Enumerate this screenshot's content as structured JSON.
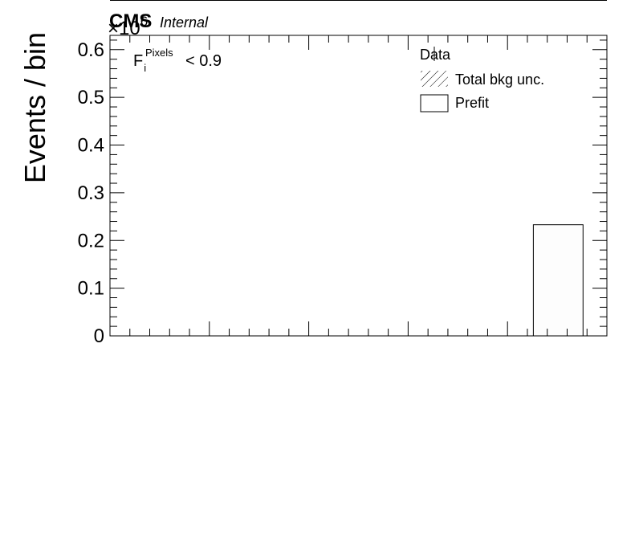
{
  "header": {
    "experiment": "CMS",
    "status": "Internal",
    "multiplier_base": "×10",
    "multiplier_exponent": "6"
  },
  "selection": {
    "symbol": "F",
    "subscript": "i",
    "superscript": "Pixels",
    "cut": "< 0.9"
  },
  "legend": {
    "placement": "top-right",
    "entries": [
      {
        "label": "Data",
        "style": "marker"
      },
      {
        "label": "Total bkg unc.",
        "style": "hatched"
      },
      {
        "label": "Prefit",
        "style": "box"
      }
    ]
  },
  "chart_data": {
    "type": "bar",
    "title": "",
    "xlabel": "",
    "ylabel": "Events / bin",
    "ylim": [
      0,
      0.63
    ],
    "y_scale_factor": "10^6",
    "y_ticks": [
      "0",
      "0.1",
      "0.2",
      "0.3",
      "0.4",
      "0.5",
      "0.6"
    ],
    "xlim": [
      0,
      1
    ],
    "x_tick_labels_shown": false,
    "grid": false,
    "series": [
      {
        "name": "Prefit",
        "bins": [
          {
            "low": 0.852,
            "high": 0.952,
            "value": 0.233
          }
        ]
      }
    ]
  }
}
